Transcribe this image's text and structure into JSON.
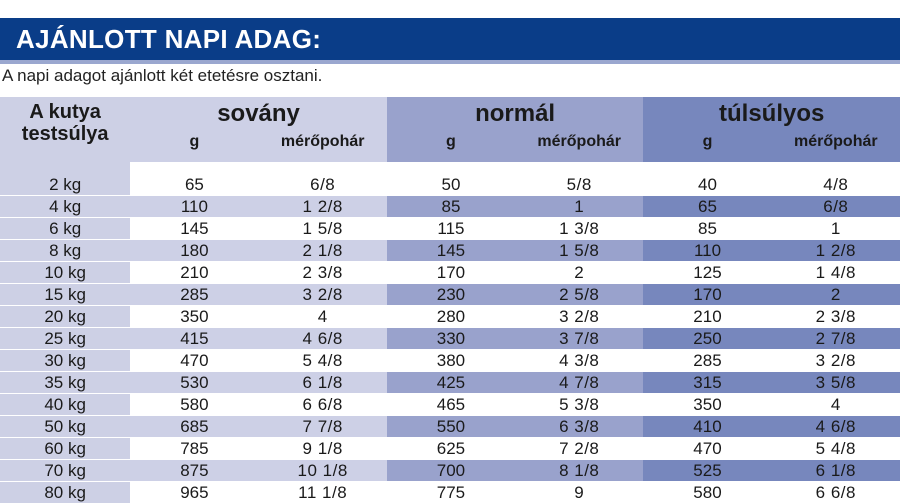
{
  "title": "AJÁNLOTT NAPI ADAG:",
  "subtitle": "A napi adagot ajánlott két etetésre osztani.",
  "table": {
    "weight_header": "A kutya testsúlya",
    "groups": [
      {
        "label": "sovány",
        "g": "g",
        "cup": "mérőpohár"
      },
      {
        "label": "normál",
        "g": "g",
        "cup": "mérőpohár"
      },
      {
        "label": "túlsúlyos",
        "g": "g",
        "cup": "mérőpohár"
      }
    ],
    "rows": [
      {
        "w": "2 kg",
        "cells": [
          "65",
          "6/8",
          "50",
          "5/8",
          "40",
          "4/8"
        ]
      },
      {
        "w": "4 kg",
        "cells": [
          "110",
          "1 2/8",
          "85",
          "1",
          "65",
          "6/8"
        ]
      },
      {
        "w": "6 kg",
        "cells": [
          "145",
          "1 5/8",
          "115",
          "1 3/8",
          "85",
          "1"
        ]
      },
      {
        "w": "8 kg",
        "cells": [
          "180",
          "2 1/8",
          "145",
          "1 5/8",
          "110",
          "1 2/8"
        ]
      },
      {
        "w": "10 kg",
        "cells": [
          "210",
          "2 3/8",
          "170",
          "2",
          "125",
          "1 4/8"
        ]
      },
      {
        "w": "15 kg",
        "cells": [
          "285",
          "3 2/8",
          "230",
          "2 5/8",
          "170",
          "2"
        ]
      },
      {
        "w": "20 kg",
        "cells": [
          "350",
          "4",
          "280",
          "3 2/8",
          "210",
          "2 3/8"
        ]
      },
      {
        "w": "25 kg",
        "cells": [
          "415",
          "4 6/8",
          "330",
          "3 7/8",
          "250",
          "2 7/8"
        ]
      },
      {
        "w": "30 kg",
        "cells": [
          "470",
          "5 4/8",
          "380",
          "4 3/8",
          "285",
          "3 2/8"
        ]
      },
      {
        "w": "35 kg",
        "cells": [
          "530",
          "6 1/8",
          "425",
          "4 7/8",
          "315",
          "3 5/8"
        ]
      },
      {
        "w": "40 kg",
        "cells": [
          "580",
          "6 6/8",
          "465",
          "5 3/8",
          "350",
          "4"
        ]
      },
      {
        "w": "50 kg",
        "cells": [
          "685",
          "7 7/8",
          "550",
          "6 3/8",
          "410",
          "4 6/8"
        ]
      },
      {
        "w": "60 kg",
        "cells": [
          "785",
          "9 1/8",
          "625",
          "7 2/8",
          "470",
          "5 4/8"
        ]
      },
      {
        "w": "70 kg",
        "cells": [
          "875",
          "10 1/8",
          "700",
          "8 1/8",
          "525",
          "6 1/8"
        ]
      },
      {
        "w": "80 kg",
        "cells": [
          "965",
          "11 1/8",
          "775",
          "9",
          "580",
          "6 6/8"
        ]
      }
    ]
  }
}
